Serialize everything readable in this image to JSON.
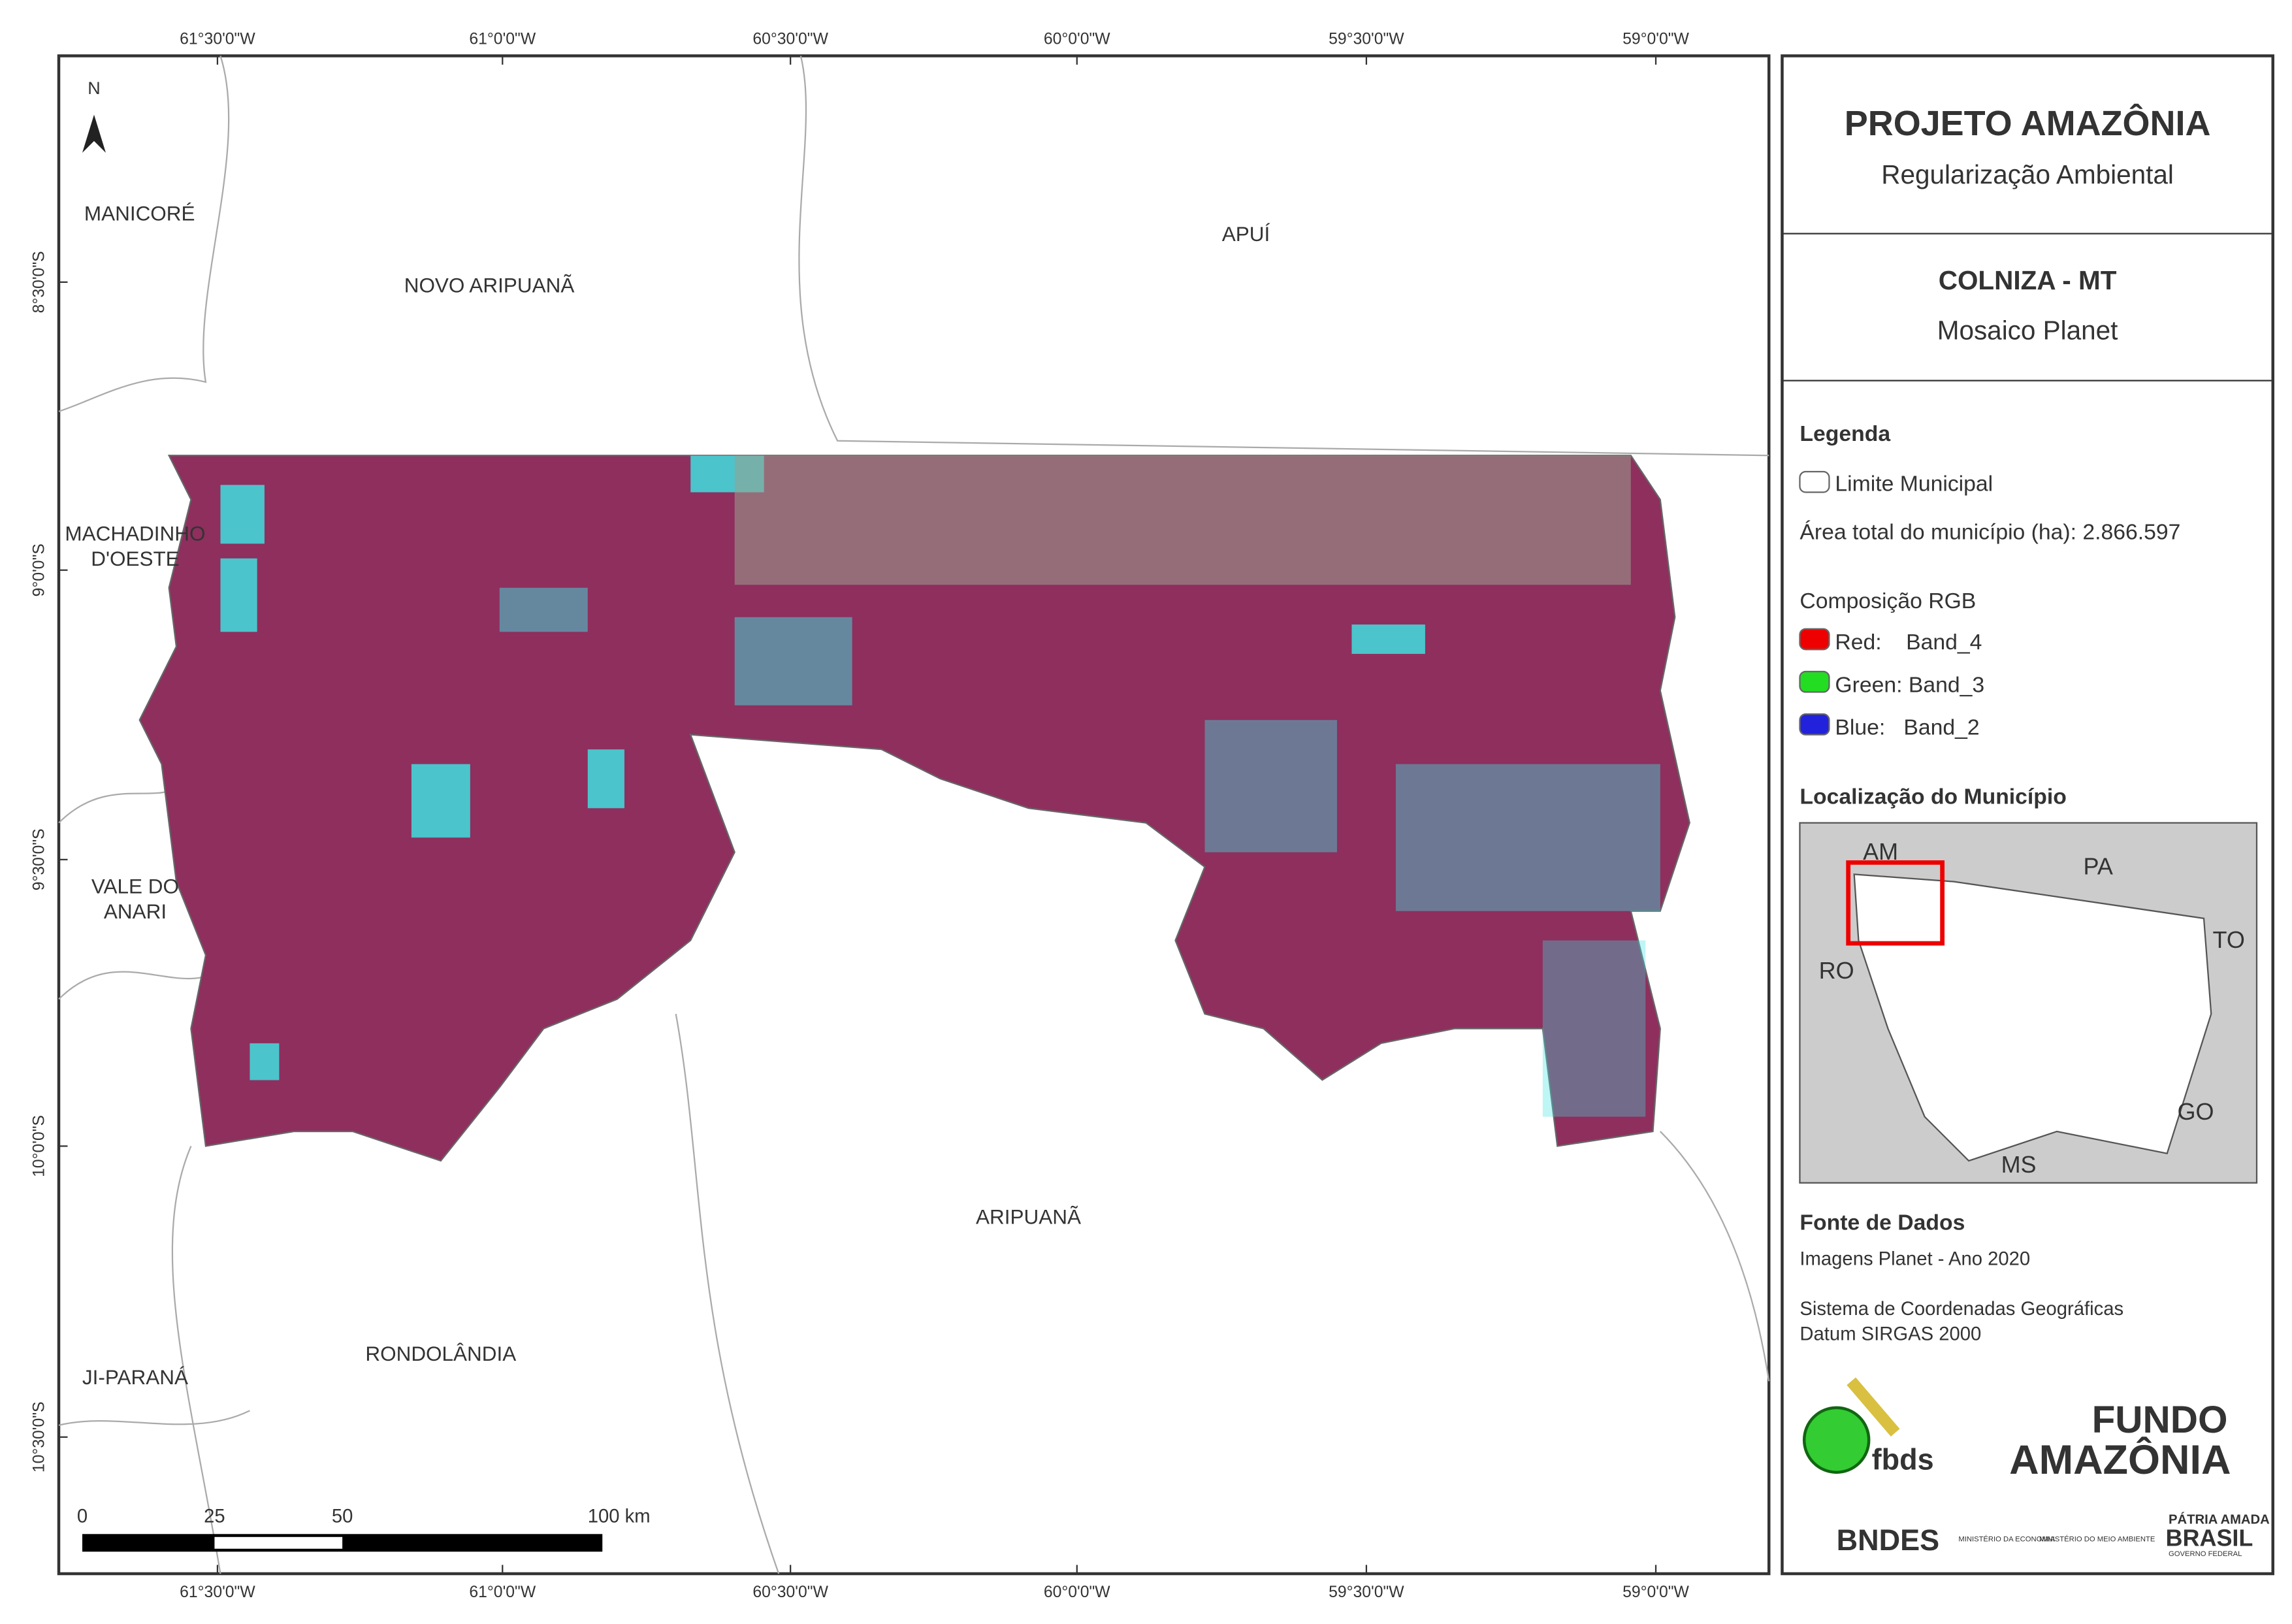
{
  "header": {
    "title": "PROJETO AMAZÔNIA",
    "subtitle": "Regularização Ambiental"
  },
  "municipality": {
    "name": "COLNIZA - MT",
    "product": "Mosaico Planet"
  },
  "coordinates": {
    "longitudes": [
      "61°30'0\"W",
      "61°0'0\"W",
      "60°30'0\"W",
      "60°0'0\"W",
      "59°30'0\"W",
      "59°0'0\"W"
    ],
    "latitudes": [
      "8°30'0\"S",
      "9°0'0\"S",
      "9°30'0\"S",
      "10°0'0\"S",
      "10°30'0\"S"
    ]
  },
  "north_arrow": "N",
  "places": [
    "MANICORÉ",
    "NOVO ARIPUANÃ",
    "APUÍ",
    "MACHADINHO D'OESTE",
    "VALE DO ANARI",
    "ARIPUANÃ",
    "RONDOLÂNDIA",
    "JI-PARANÁ"
  ],
  "scale_bar": [
    "0",
    "25",
    "50",
    "100 km"
  ],
  "legend": {
    "title": "Legenda",
    "boundary": "Limite Municipal",
    "area": "Área total do município (ha): 2.866.597",
    "rgb_title": "Composição RGB",
    "red": "Red:    Band_4",
    "green": "Green: Band_3",
    "blue": "Blue:   Band_2"
  },
  "location": {
    "title": "Localização do Município",
    "states": [
      "AM",
      "PA",
      "TO",
      "RO",
      "GO",
      "MS"
    ]
  },
  "sources": {
    "title": "Fonte de Dados",
    "images": "Imagens Planet - Ano 2020",
    "crs": "Sistema de Coordenadas Geográficas",
    "datum": "Datum SIRGAS 2000"
  },
  "logos": {
    "fbds": "fbds",
    "fundo1": "FUNDO",
    "fundo2": "AMAZÔNIA",
    "bndes": "BNDES",
    "min_econ": "MINISTÉRIO DA ECONOMIA",
    "min_ma": "MINISTÉRIO DO MEIO AMBIENTE",
    "patria": "PÁTRIA AMADA",
    "brasil": "BRASIL",
    "gov": "GOVERNO FEDERAL"
  }
}
